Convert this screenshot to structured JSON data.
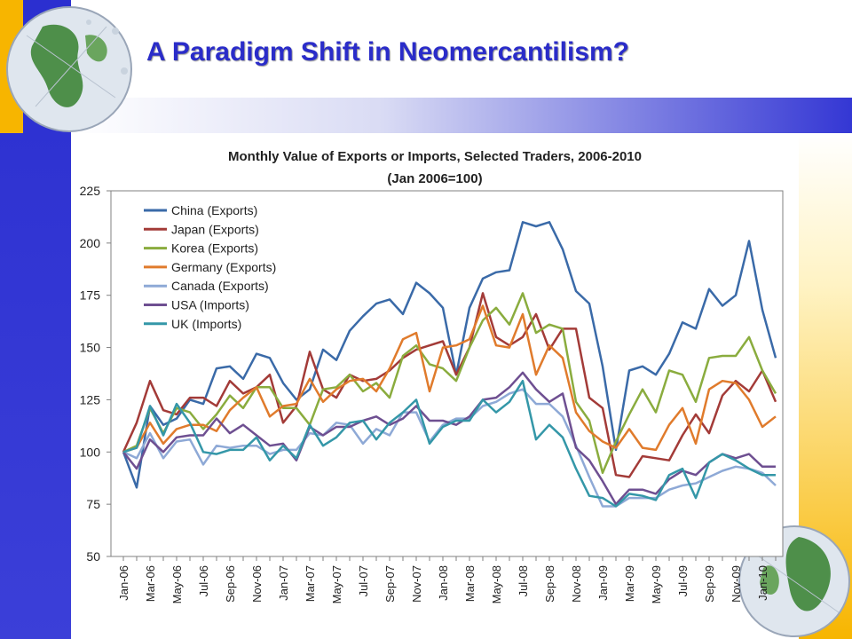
{
  "slide": {
    "title": "A Paradigm Shift in Neomercantilism?"
  },
  "chart_data": {
    "type": "line",
    "title": "Monthly Value of Exports or Imports, Selected Traders, 2006-2010",
    "subtitle": "(Jan 2006=100)",
    "xlabel": "",
    "ylabel": "",
    "ylim": [
      50,
      225
    ],
    "yticks": [
      50,
      75,
      100,
      125,
      150,
      175,
      200,
      225
    ],
    "grid": false,
    "legend": "top-left",
    "x": [
      "Jan-06",
      "Feb-06",
      "Mar-06",
      "Apr-06",
      "May-06",
      "Jun-06",
      "Jul-06",
      "Aug-06",
      "Sep-06",
      "Oct-06",
      "Nov-06",
      "Dec-06",
      "Jan-07",
      "Feb-07",
      "Mar-07",
      "Apr-07",
      "May-07",
      "Jun-07",
      "Jul-07",
      "Aug-07",
      "Sep-07",
      "Oct-07",
      "Nov-07",
      "Dec-07",
      "Jan-08",
      "Feb-08",
      "Mar-08",
      "Apr-08",
      "May-08",
      "Jun-08",
      "Jul-08",
      "Aug-08",
      "Sep-08",
      "Oct-08",
      "Nov-08",
      "Dec-08",
      "Jan-09",
      "Feb-09",
      "Mar-09",
      "Apr-09",
      "May-09",
      "Jun-09",
      "Jul-09",
      "Aug-09",
      "Sep-09",
      "Oct-09",
      "Nov-09",
      "Dec-09",
      "Jan-10",
      "Feb-10"
    ],
    "xtick_labels": [
      "Jan-06",
      "Mar-06",
      "May-06",
      "Jul-06",
      "Sep-06",
      "Nov-06",
      "Jan-07",
      "Mar-07",
      "May-07",
      "Jul-07",
      "Sep-07",
      "Nov-07",
      "Jan-08",
      "Mar-08",
      "May-08",
      "Jul-08",
      "Sep-08",
      "Nov-08",
      "Jan-09",
      "Mar-09",
      "May-09",
      "Jul-09",
      "Sep-09",
      "Nov-09",
      "Jan-10"
    ],
    "series": [
      {
        "name": "China (Exports)",
        "color": "#3a6aa8",
        "values": [
          100,
          83,
          122,
          113,
          116,
          125,
          123,
          140,
          141,
          135,
          147,
          145,
          133,
          125,
          130,
          149,
          144,
          158,
          165,
          171,
          173,
          166,
          181,
          176,
          169,
          137,
          169,
          183,
          186,
          187,
          210,
          208,
          210,
          197,
          177,
          171,
          141,
          101,
          139,
          141,
          137,
          147,
          162,
          159,
          178,
          170,
          175,
          201,
          168,
          145
        ]
      },
      {
        "name": "Japan (Exports)",
        "color": "#a33b38",
        "values": [
          100,
          114,
          134,
          120,
          118,
          126,
          126,
          122,
          134,
          128,
          131,
          137,
          114,
          122,
          148,
          130,
          126,
          137,
          134,
          135,
          139,
          145,
          149,
          151,
          153,
          137,
          150,
          176,
          155,
          151,
          155,
          166,
          149,
          159,
          159,
          126,
          121,
          89,
          88,
          98,
          97,
          96,
          108,
          118,
          109,
          127,
          134,
          129,
          139,
          124
        ]
      },
      {
        "name": "Korea (Exports)",
        "color": "#8aac3e",
        "values": [
          100,
          103,
          121,
          109,
          121,
          119,
          111,
          118,
          127,
          121,
          131,
          131,
          121,
          121,
          113,
          130,
          131,
          137,
          129,
          133,
          126,
          146,
          151,
          142,
          140,
          134,
          150,
          163,
          169,
          161,
          176,
          157,
          161,
          159,
          124,
          115,
          90,
          105,
          118,
          130,
          119,
          139,
          137,
          124,
          145,
          146,
          146,
          155,
          139,
          128
        ]
      },
      {
        "name": "Germany (Exports)",
        "color": "#e07b2c",
        "values": [
          100,
          102,
          114,
          104,
          111,
          113,
          113,
          110,
          120,
          126,
          131,
          117,
          122,
          123,
          135,
          124,
          130,
          134,
          135,
          129,
          140,
          154,
          157,
          129,
          150,
          151,
          154,
          170,
          151,
          150,
          166,
          137,
          151,
          145,
          119,
          110,
          105,
          102,
          111,
          102,
          101,
          113,
          121,
          104,
          130,
          134,
          133,
          125,
          112,
          117
        ]
      },
      {
        "name": "Canada (Exports)",
        "color": "#8ea9d6",
        "values": [
          100,
          97,
          109,
          97,
          105,
          106,
          94,
          103,
          102,
          103,
          103,
          99,
          101,
          101,
          109,
          108,
          114,
          113,
          104,
          111,
          108,
          119,
          119,
          105,
          113,
          116,
          116,
          122,
          124,
          128,
          130,
          123,
          123,
          117,
          103,
          88,
          74,
          74,
          78,
          78,
          78,
          82,
          84,
          85,
          88,
          91,
          93,
          92,
          90,
          84
        ]
      },
      {
        "name": "USA (Imports)",
        "color": "#6e4f91",
        "values": [
          100,
          92,
          106,
          100,
          107,
          108,
          108,
          116,
          109,
          113,
          108,
          103,
          104,
          96,
          112,
          108,
          112,
          112,
          115,
          117,
          113,
          116,
          122,
          115,
          115,
          113,
          117,
          125,
          126,
          131,
          138,
          130,
          124,
          128,
          102,
          96,
          86,
          75,
          82,
          82,
          80,
          87,
          91,
          89,
          95,
          99,
          97,
          99,
          93,
          93
        ]
      },
      {
        "name": "UK (Imports)",
        "color": "#3497a8",
        "values": [
          100,
          102,
          122,
          108,
          123,
          114,
          100,
          99,
          101,
          101,
          107,
          96,
          103,
          97,
          113,
          103,
          107,
          114,
          115,
          106,
          114,
          119,
          125,
          104,
          112,
          115,
          115,
          125,
          119,
          124,
          134,
          106,
          113,
          107,
          92,
          79,
          78,
          74,
          80,
          79,
          77,
          89,
          92,
          78,
          95,
          99,
          96,
          92,
          89,
          89
        ]
      }
    ]
  }
}
